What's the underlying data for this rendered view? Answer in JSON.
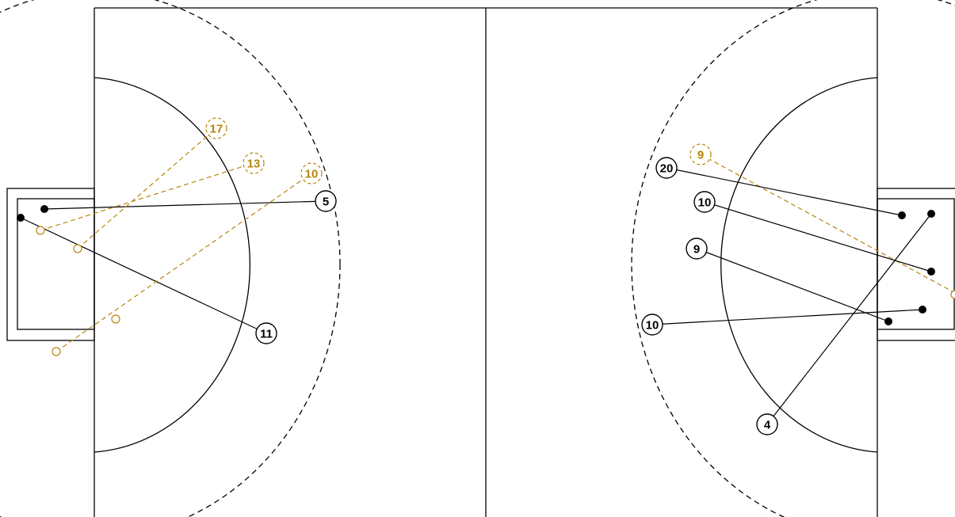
{
  "colors": {
    "made": "#000000",
    "missed": "#b8860b",
    "background": "#ffffff"
  },
  "players_left": [
    {
      "number": "5",
      "result": "made"
    },
    {
      "number": "11",
      "result": "made"
    },
    {
      "number": "17",
      "result": "missed"
    },
    {
      "number": "13",
      "result": "missed"
    },
    {
      "number": "10",
      "result": "missed"
    }
  ],
  "players_right": [
    {
      "number": "20",
      "result": "made"
    },
    {
      "number": "10",
      "result": "made"
    },
    {
      "number": "9",
      "result": "made"
    },
    {
      "number": "10",
      "result": "made"
    },
    {
      "number": "4",
      "result": "made"
    },
    {
      "number": "9",
      "result": "missed"
    }
  ]
}
